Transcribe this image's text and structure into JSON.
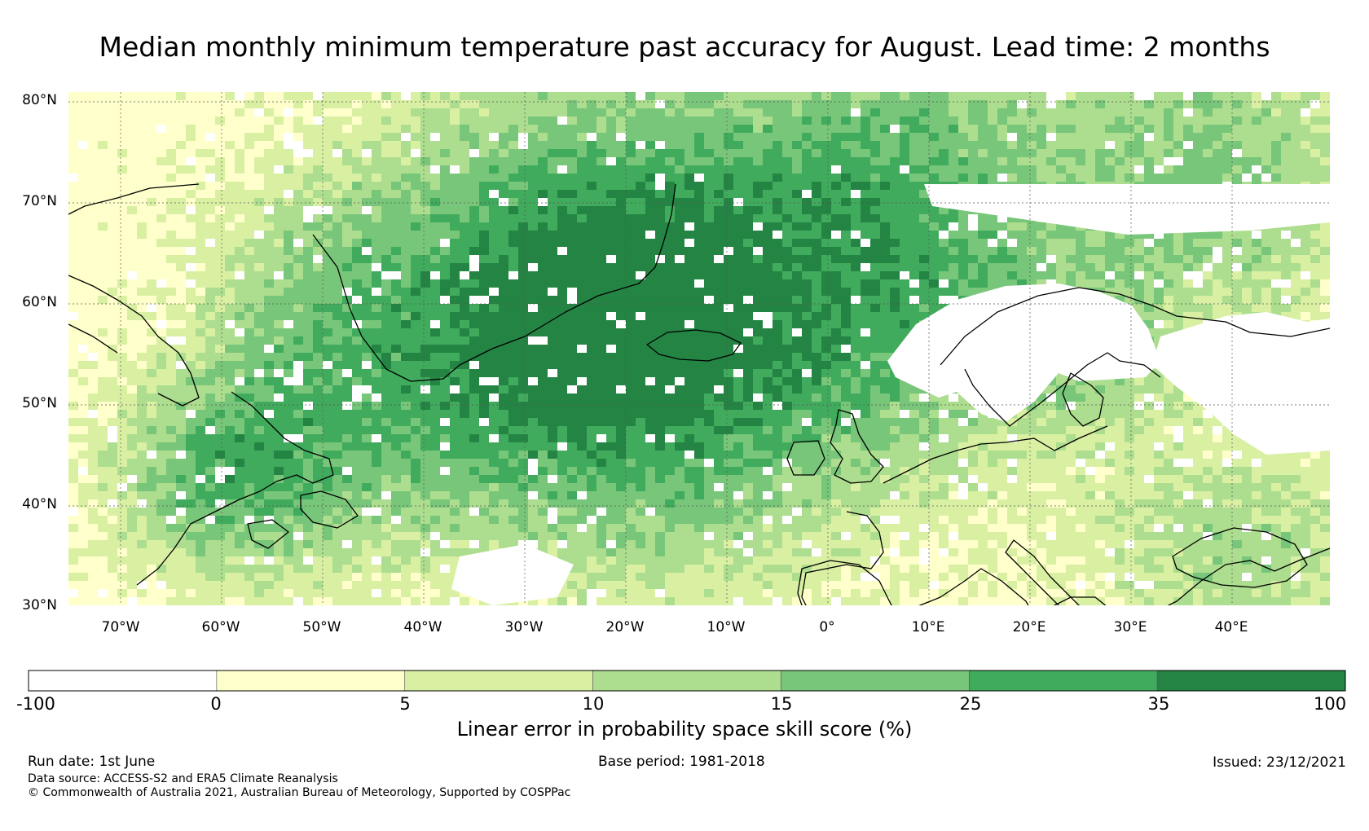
{
  "title": "Median monthly minimum temperature past accuracy for August. Lead time: 2 months",
  "map": {
    "lat_labels": [
      "80°N",
      "70°N",
      "60°N",
      "50°N",
      "40°N",
      "30°N"
    ],
    "lon_labels": [
      "70°W",
      "60°W",
      "50°W",
      "40°W",
      "30°W",
      "20°W",
      "10°W",
      "0°",
      "10°E",
      "20°E",
      "30°E",
      "40°E"
    ]
  },
  "colorbar": {
    "ticks": [
      "-100",
      "0",
      "5",
      "10",
      "15",
      "25",
      "35",
      "100"
    ],
    "colors": [
      "#ffffff",
      "#ffffcc",
      "#d9f0a3",
      "#addd8e",
      "#78c679",
      "#41ab5d",
      "#238443"
    ],
    "label": "Linear error in probability space skill score (%)"
  },
  "footer": {
    "run_date": "Run date: 1st June",
    "base_period": "Base period: 1981-2018",
    "issued": "Issued: 23/12/2021",
    "data_source": "Data source: ACCESS-S2 and ERA5 Climate Reanalysis",
    "copyright": "© Commonwealth of Australia 2021, Australian Bureau of Meteorology, Supported by COSPPac"
  }
}
